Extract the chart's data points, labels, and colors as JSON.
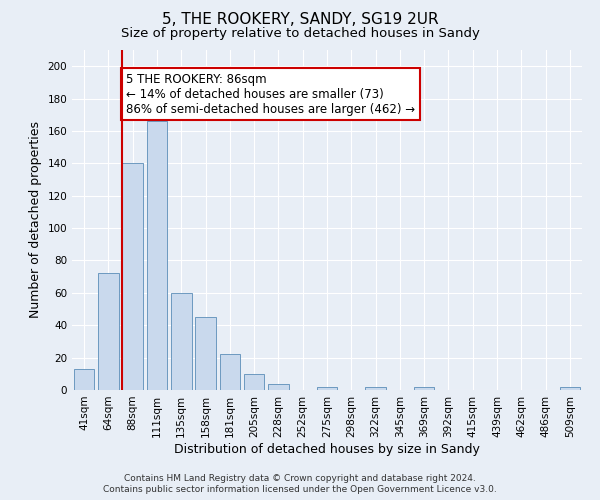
{
  "title": "5, THE ROOKERY, SANDY, SG19 2UR",
  "subtitle": "Size of property relative to detached houses in Sandy",
  "xlabel": "Distribution of detached houses by size in Sandy",
  "ylabel": "Number of detached properties",
  "bin_labels": [
    "41sqm",
    "64sqm",
    "88sqm",
    "111sqm",
    "135sqm",
    "158sqm",
    "181sqm",
    "205sqm",
    "228sqm",
    "252sqm",
    "275sqm",
    "298sqm",
    "322sqm",
    "345sqm",
    "369sqm",
    "392sqm",
    "415sqm",
    "439sqm",
    "462sqm",
    "486sqm",
    "509sqm"
  ],
  "bar_values": [
    13,
    72,
    140,
    166,
    60,
    45,
    22,
    10,
    4,
    0,
    2,
    0,
    2,
    0,
    2,
    0,
    0,
    0,
    0,
    0,
    2
  ],
  "bar_color": "#c9d9ed",
  "bar_edge_color": "#5b8db8",
  "property_line_bin_index": 2,
  "property_line_color": "#cc0000",
  "annotation_text": "5 THE ROOKERY: 86sqm\n← 14% of detached houses are smaller (73)\n86% of semi-detached houses are larger (462) →",
  "annotation_box_facecolor": "#ffffff",
  "annotation_box_edgecolor": "#cc0000",
  "ylim": [
    0,
    210
  ],
  "yticks": [
    0,
    20,
    40,
    60,
    80,
    100,
    120,
    140,
    160,
    180,
    200
  ],
  "footer_line1": "Contains HM Land Registry data © Crown copyright and database right 2024.",
  "footer_line2": "Contains public sector information licensed under the Open Government Licence v3.0.",
  "background_color": "#e8eef6",
  "grid_color": "#ffffff",
  "title_fontsize": 11,
  "subtitle_fontsize": 9.5,
  "axis_label_fontsize": 9,
  "tick_fontsize": 7.5,
  "annotation_fontsize": 8.5,
  "footer_fontsize": 6.5
}
